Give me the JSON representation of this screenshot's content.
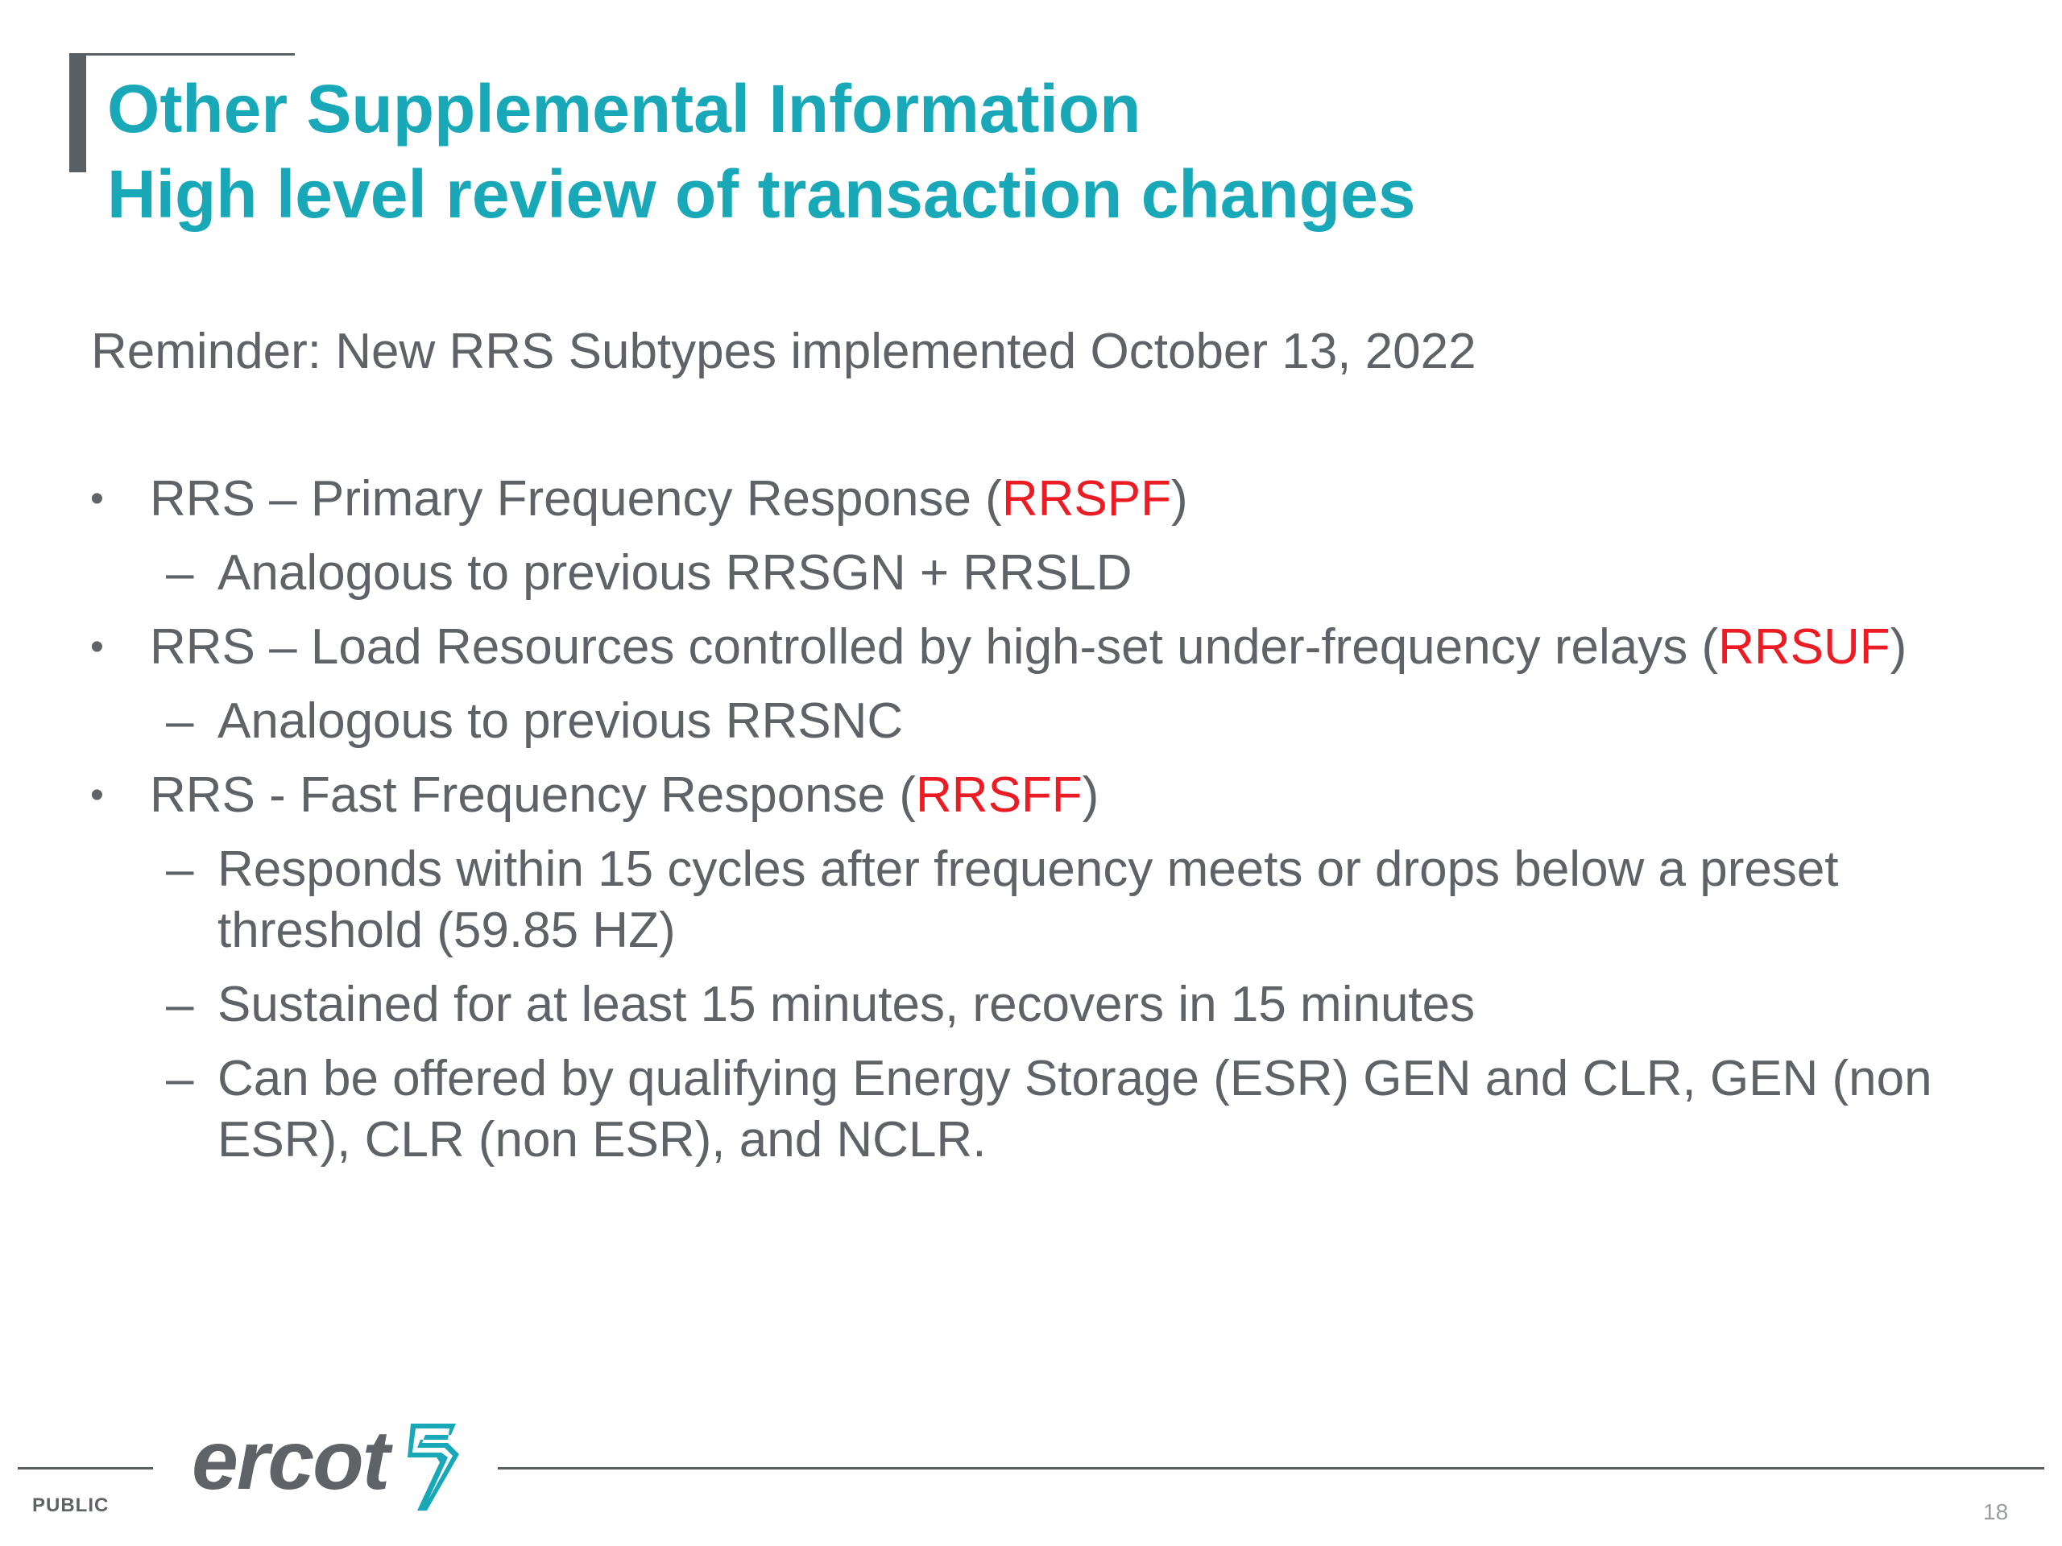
{
  "header": {
    "title_line1": "Other Supplemental Information",
    "title_line2": "High level review of transaction changes"
  },
  "reminder": "Reminder: New RRS Subtypes implemented October 13, 2022",
  "bullets": [
    {
      "marker": "•",
      "prefix": "RRS – Primary Frequency Response (",
      "code": "RRSPF",
      "suffix": ")",
      "subs": [
        {
          "marker": "–",
          "text": "Analogous to previous RRSGN + RRSLD"
        }
      ]
    },
    {
      "marker": "•",
      "prefix": "RRS – Load Resources controlled by high-set under-frequency relays (",
      "code": "RRSUF",
      "suffix": ")",
      "subs": [
        {
          "marker": "–",
          "text": "Analogous to previous RRSNC"
        }
      ]
    },
    {
      "marker": "•",
      "prefix": "RRS - Fast Frequency Response (",
      "code": "RRSFF",
      "suffix": ")",
      "subs": [
        {
          "marker": "–",
          "text": "Responds within 15 cycles after frequency meets or drops below a preset threshold (59.85 HZ)"
        },
        {
          "marker": "–",
          "text": "Sustained for at least 15 minutes, recovers in 15 minutes"
        },
        {
          "marker": "–",
          "text": "Can be offered by qualifying Energy Storage (ESR) GEN and CLR, GEN (non ESR), CLR (non ESR), and NCLR."
        }
      ]
    }
  ],
  "footer": {
    "logo_text": "ercot",
    "classification": "PUBLIC",
    "page_number": "18"
  },
  "colors": {
    "title": "#19a8b8",
    "body_text": "#5f6266",
    "highlight_code": "#ec1c24",
    "rule": "#5a5f63",
    "logo_mark": "#19a8b8"
  }
}
